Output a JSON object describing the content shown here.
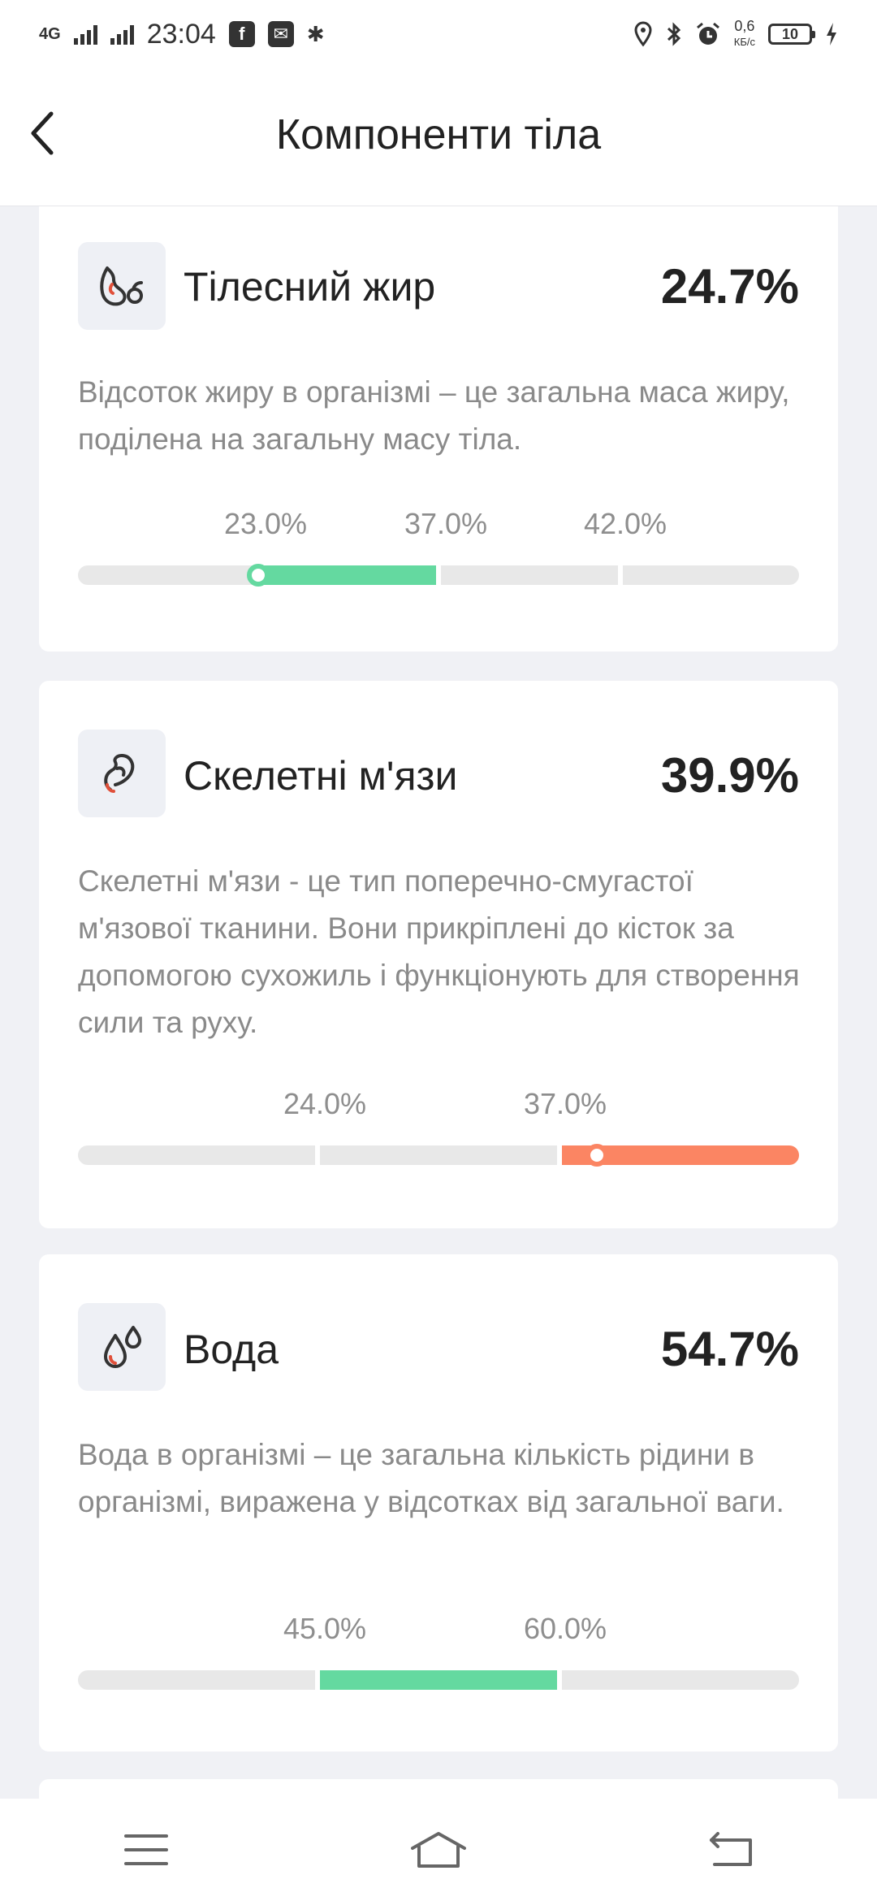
{
  "status_bar": {
    "network": "4G",
    "time": "23:04",
    "net_speed_value": "0,6",
    "net_speed_unit": "КБ/с",
    "battery": "10"
  },
  "header": {
    "title": "Компоненти тіла"
  },
  "metrics": [
    {
      "name": "Тілесний жир",
      "value": "24.7%",
      "icon": "body-fat-icon",
      "description": "Відсоток жиру в організмі – це загальна маса жиру, поділена на загальну масу тіла.",
      "ticks": [
        "23.0%",
        "37.0%",
        "42.0%"
      ],
      "active_segment": 2,
      "marker_position_fraction": 0.25,
      "status_color": "#64d9a0"
    },
    {
      "name": "Скелетні м'язи",
      "value": "39.9%",
      "icon": "muscle-icon",
      "description": "Скелетні м'язи - це тип поперечно-смугастої м'язової тканини. Вони прикріплені до кісток за допомогою сухожиль і функціонують для створення сили та руху.",
      "ticks": [
        "24.0%",
        "37.0%"
      ],
      "active_segment": 3,
      "marker_position_fraction": 0.72,
      "status_color": "#fb8563"
    },
    {
      "name": "Вода",
      "value": "54.7%",
      "icon": "water-drops-icon",
      "description": "Вода в організмі – це загальна кількість рідини в організмі, виражена у відсотках від загальної ваги.",
      "ticks": [
        "45.0%",
        "60.0%"
      ],
      "active_segment": 2,
      "status_color": "#64d9a0"
    }
  ],
  "colors": {
    "accent_red": "#e0503a",
    "good_green": "#64d9a0",
    "high_orange": "#fb8563",
    "track_gray": "#e8e8e8"
  }
}
